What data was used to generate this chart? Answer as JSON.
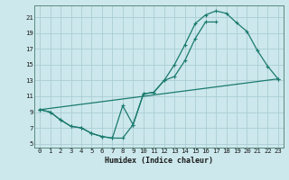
{
  "title": "",
  "xlabel": "Humidex (Indice chaleur)",
  "bg_color": "#cce8ec",
  "grid_color": "#aacdd4",
  "line_color": "#1a7a6e",
  "xlim": [
    -0.5,
    23.5
  ],
  "ylim": [
    4.5,
    22.5
  ],
  "xticks": [
    0,
    1,
    2,
    3,
    4,
    5,
    6,
    7,
    8,
    9,
    10,
    11,
    12,
    13,
    14,
    15,
    16,
    17,
    18,
    19,
    20,
    21,
    22,
    23
  ],
  "yticks": [
    5,
    7,
    9,
    11,
    13,
    15,
    17,
    19,
    21
  ],
  "line1_x": [
    0,
    1,
    2,
    3,
    4,
    5,
    6,
    7,
    8,
    9,
    10,
    11,
    12,
    13,
    14,
    15,
    16,
    17,
    18,
    19,
    20,
    21,
    22,
    23
  ],
  "line1_y": [
    9.3,
    9.0,
    8.0,
    7.2,
    7.0,
    6.3,
    5.9,
    5.7,
    9.8,
    7.4,
    11.3,
    11.5,
    13.0,
    15.0,
    17.5,
    20.2,
    21.3,
    21.8,
    21.5,
    20.3,
    19.2,
    16.8,
    14.8,
    13.2
  ],
  "line2_x": [
    0,
    1,
    2,
    3,
    4,
    5,
    6,
    7,
    8,
    9,
    10,
    11,
    12,
    13,
    14,
    15,
    16,
    17
  ],
  "line2_y": [
    9.3,
    9.0,
    8.0,
    7.2,
    7.0,
    6.3,
    5.9,
    5.7,
    5.7,
    7.4,
    11.3,
    11.5,
    13.0,
    13.5,
    15.5,
    18.3,
    20.4,
    20.4
  ],
  "line3_x": [
    0,
    23
  ],
  "line3_y": [
    9.3,
    13.2
  ]
}
